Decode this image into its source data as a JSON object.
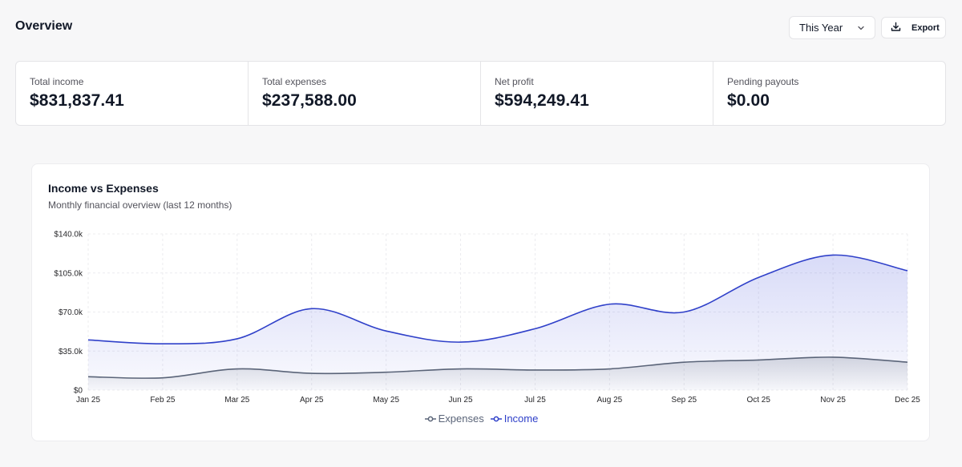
{
  "header": {
    "title": "Overview",
    "period_select": {
      "value": "This Year"
    },
    "export_label": "Export"
  },
  "stats": [
    {
      "label": "Total income",
      "value": "$831,837.41"
    },
    {
      "label": "Total expenses",
      "value": "$237,588.00"
    },
    {
      "label": "Net profit",
      "value": "$594,249.41"
    },
    {
      "label": "Pending payouts",
      "value": "$0.00"
    }
  ],
  "chart_card": {
    "title": "Income vs Expenses",
    "subtitle": "Monthly financial overview (last 12 months)"
  },
  "colors": {
    "income": "#2f40c9",
    "expenses": "#5a6478"
  },
  "chart_data": {
    "type": "area",
    "title": "Income vs Expenses",
    "categories": [
      "Jan 25",
      "Feb 25",
      "Mar 25",
      "Apr 25",
      "May 25",
      "Jun 25",
      "Jul 25",
      "Aug 25",
      "Sep 25",
      "Oct 25",
      "Nov 25",
      "Dec 25"
    ],
    "y_ticks": [
      "$0",
      "$35.0k",
      "$70.0k",
      "$105.0k",
      "$140.0k"
    ],
    "ylim": [
      0,
      140000
    ],
    "grid": true,
    "legend_position": "bottom-center",
    "series": [
      {
        "name": "Expenses",
        "color_key": "expenses",
        "values": [
          12000,
          11000,
          19000,
          15000,
          16000,
          19000,
          18000,
          19000,
          25000,
          27000,
          29500,
          25000
        ]
      },
      {
        "name": "Income",
        "color_key": "income",
        "values": [
          45000,
          41500,
          46000,
          73000,
          53000,
          43000,
          55000,
          77000,
          70000,
          101000,
          121000,
          107000
        ]
      }
    ]
  }
}
